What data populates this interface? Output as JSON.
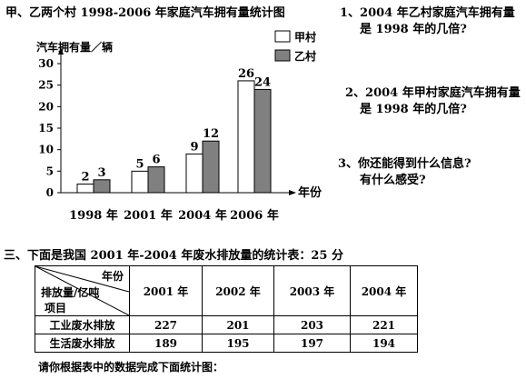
{
  "chart": {
    "title": "甲、乙两个村 1998-2006 年家庭汽车拥有量统计图",
    "ylabel": "汽车拥有量／辆",
    "xlabel": "年份",
    "legend": [
      {
        "name": "甲村",
        "color": "#ffffff"
      },
      {
        "name": "乙村",
        "color": "#808080"
      }
    ]
  },
  "chart_data": {
    "type": "bar",
    "title": "甲、乙两个村 1998-2006 年家庭汽车拥有量统计图",
    "xlabel": "年份",
    "ylabel": "汽车拥有量／辆",
    "categories": [
      "1998 年",
      "2001 年",
      "2004 年",
      "2006 年"
    ],
    "series": [
      {
        "name": "甲村",
        "values": [
          2,
          5,
          9,
          26
        ]
      },
      {
        "name": "乙村",
        "values": [
          3,
          6,
          12,
          24
        ]
      }
    ],
    "ylim": [
      0,
      30
    ],
    "yticks": [
      "0",
      "5",
      "10",
      "15",
      "20",
      "25",
      "30"
    ],
    "legend_position": "top-right",
    "grid": false
  },
  "questions": {
    "q1_line1": "1、2004 年乙村家庭汽车拥有量",
    "q1_line2": "是 1998 年的几倍?",
    "q2_line1": "2、2004 年甲村家庭汽车拥有量",
    "q2_line2": "是 1998 年的几倍?",
    "q3_line1": "3、你还能得到什么信息?",
    "q3_line2": "有什么感受?"
  },
  "section3": {
    "title": "三、下面是我国 2001 年-2004 年废水排放量的统计表：25 分",
    "header_top": "年份",
    "header_mid": "排放量/亿吨",
    "header_bottom": "项目",
    "columns": [
      "2001 年",
      "2002 年",
      "2003 年",
      "2004 年"
    ],
    "rows": [
      {
        "label": "工业废水排放",
        "values": [
          "227",
          "201",
          "203",
          "221"
        ]
      },
      {
        "label": "生活废水排放",
        "values": [
          "189",
          "195",
          "197",
          "194"
        ]
      }
    ],
    "footer": "请你根据表中的数据完成下面统计图："
  }
}
